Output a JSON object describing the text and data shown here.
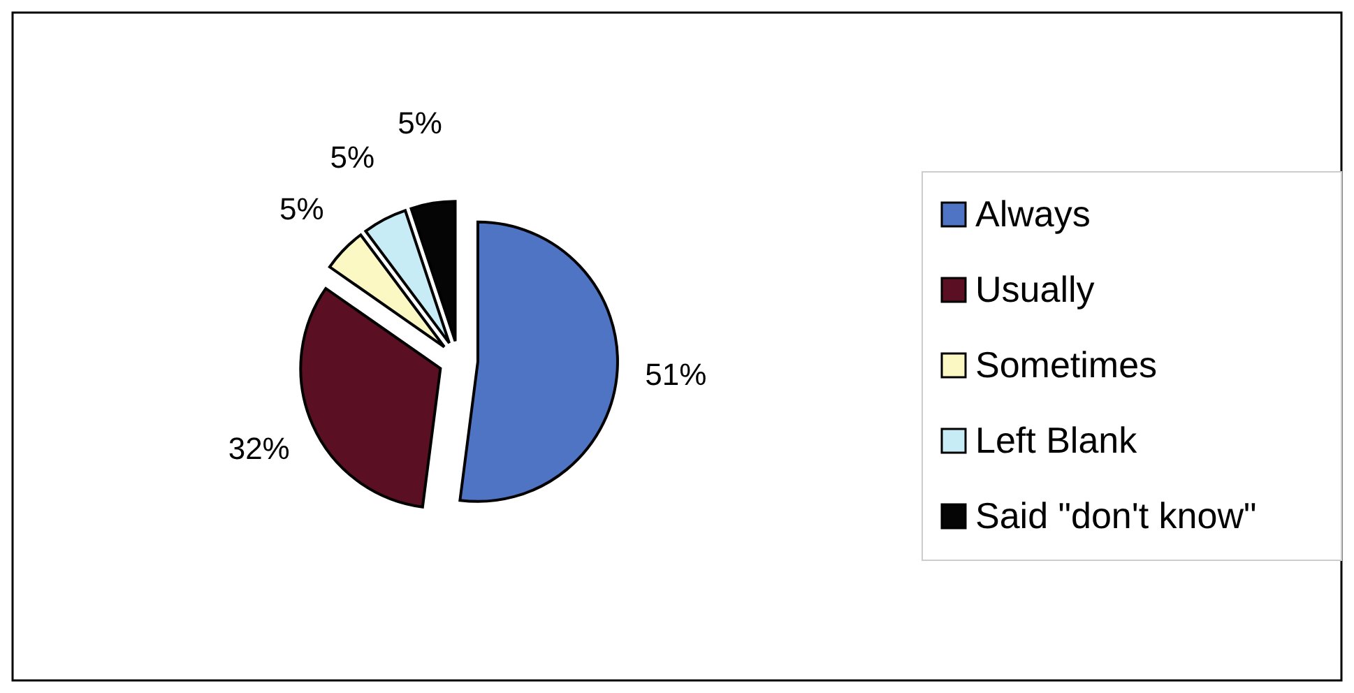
{
  "chart_data": {
    "type": "pie",
    "categories": [
      "Always",
      "Usually",
      "Sometimes",
      "Left Blank",
      "Said \"don't know\""
    ],
    "values": [
      51,
      32,
      5,
      5,
      5
    ],
    "colors": [
      "#4f74c4",
      "#5a0f22",
      "#fbf8c4",
      "#c8ecf6",
      "#050505"
    ],
    "value_labels": [
      "51%",
      "32%",
      "5%",
      "5%",
      "5%"
    ],
    "legend": "right"
  }
}
